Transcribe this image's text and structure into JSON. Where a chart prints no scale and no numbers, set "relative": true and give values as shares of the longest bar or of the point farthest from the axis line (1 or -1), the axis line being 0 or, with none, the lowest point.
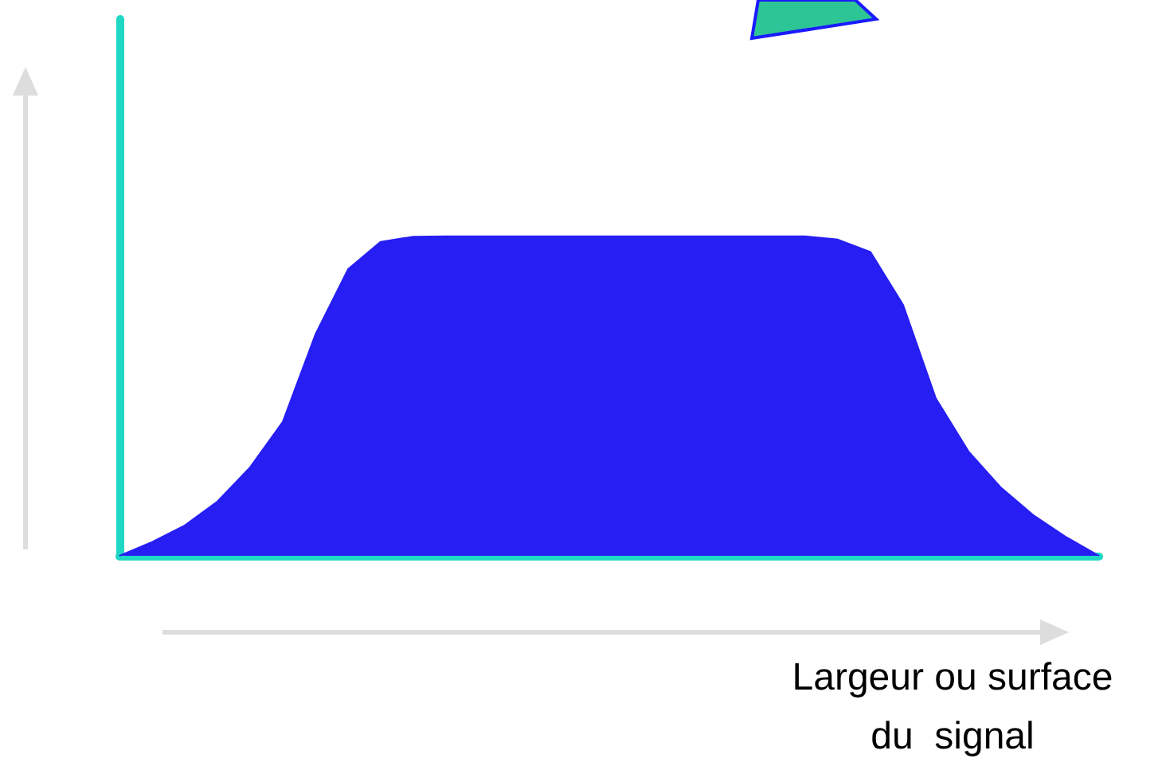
{
  "chart_data": {
    "type": "area",
    "relative": true,
    "xlabel": "Largeur ou surface\ndu  signal",
    "color": "#261ef2",
    "categories": [
      null,
      null,
      null,
      null,
      null,
      null,
      null,
      null,
      null,
      null,
      null,
      null,
      null,
      null,
      null,
      null,
      null,
      null,
      null,
      null,
      null,
      null,
      null,
      null,
      null,
      null,
      null,
      null,
      null,
      null,
      null
    ],
    "values": [
      0,
      0.043,
      0.095,
      0.17,
      0.277,
      0.419,
      0.693,
      0.897,
      0.983,
      0.999,
      1,
      1,
      1,
      1,
      1,
      1,
      1,
      1,
      1,
      1,
      1,
      1,
      0.99,
      0.951,
      0.785,
      0.493,
      0.327,
      0.213,
      0.126,
      0.058,
      0
    ]
  }
}
